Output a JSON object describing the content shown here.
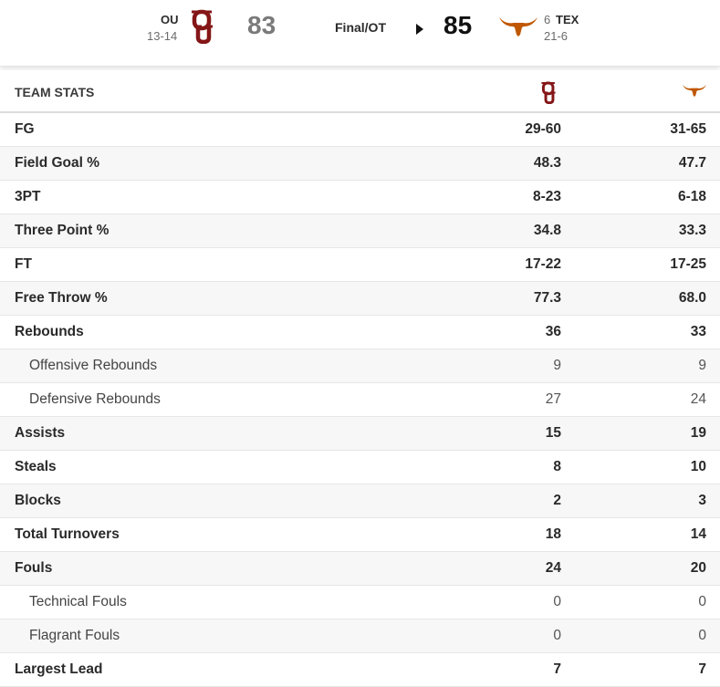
{
  "colors": {
    "ou_crimson": "#841617",
    "tex_orange": "#bf5700"
  },
  "game": {
    "away": {
      "abbr": "OU",
      "record": "13-14",
      "score": "83",
      "logo": "ou-logo-icon"
    },
    "home": {
      "abbr": "TEX",
      "rank": "6",
      "record": "21-6",
      "score": "85",
      "logo": "longhorn-logo-icon"
    },
    "status": "Final/OT"
  },
  "team_stats": {
    "header": "TEAM STATS",
    "rows": [
      {
        "label": "FG",
        "away": "29-60",
        "home": "31-65",
        "sub": false
      },
      {
        "label": "Field Goal %",
        "away": "48.3",
        "home": "47.7",
        "sub": false
      },
      {
        "label": "3PT",
        "away": "8-23",
        "home": "6-18",
        "sub": false
      },
      {
        "label": "Three Point %",
        "away": "34.8",
        "home": "33.3",
        "sub": false
      },
      {
        "label": "FT",
        "away": "17-22",
        "home": "17-25",
        "sub": false
      },
      {
        "label": "Free Throw %",
        "away": "77.3",
        "home": "68.0",
        "sub": false
      },
      {
        "label": "Rebounds",
        "away": "36",
        "home": "33",
        "sub": false
      },
      {
        "label": "Offensive Rebounds",
        "away": "9",
        "home": "9",
        "sub": true
      },
      {
        "label": "Defensive Rebounds",
        "away": "27",
        "home": "24",
        "sub": true
      },
      {
        "label": "Assists",
        "away": "15",
        "home": "19",
        "sub": false
      },
      {
        "label": "Steals",
        "away": "8",
        "home": "10",
        "sub": false
      },
      {
        "label": "Blocks",
        "away": "2",
        "home": "3",
        "sub": false
      },
      {
        "label": "Total Turnovers",
        "away": "18",
        "home": "14",
        "sub": false
      },
      {
        "label": "Fouls",
        "away": "24",
        "home": "20",
        "sub": false
      },
      {
        "label": "Technical Fouls",
        "away": "0",
        "home": "0",
        "sub": true
      },
      {
        "label": "Flagrant Fouls",
        "away": "0",
        "home": "0",
        "sub": true
      },
      {
        "label": "Largest Lead",
        "away": "7",
        "home": "7",
        "sub": false
      }
    ]
  }
}
